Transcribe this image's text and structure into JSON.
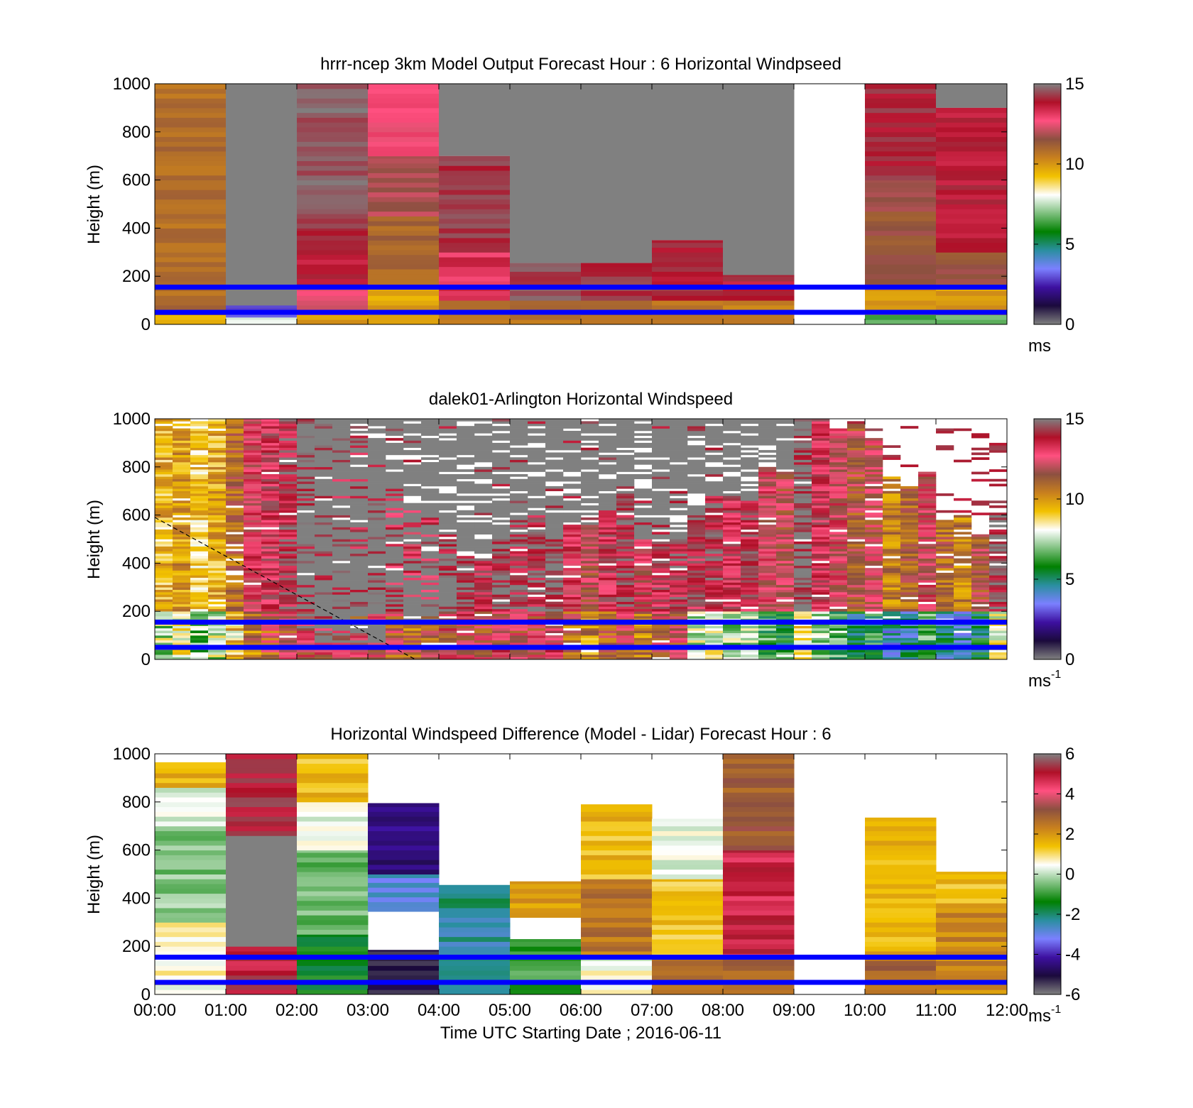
{
  "colors": {
    "background": "#ffffff",
    "axis": "#000000",
    "blue_reference_lines": "#0000ff",
    "gray_saturation": "#808080"
  },
  "colormap": {
    "name": "windspeed",
    "stops": [
      "#808080",
      "#1b0a3c",
      "#3d10a0",
      "#7b80ff",
      "#2a8fa0",
      "#008000",
      "#7fc07f",
      "#ffffff",
      "#f2c200",
      "#c8801e",
      "#8c5040",
      "#ff5080",
      "#b01028",
      "#808080"
    ]
  },
  "chart_data": [
    {
      "type": "heatmap",
      "title": "hrrr-ncep 3km Model Output   Forecast Hour : 6 Horizontal Windpseed",
      "xlabel": "",
      "ylabel": "Height (m)",
      "xlim": [
        "00:00",
        "12:00"
      ],
      "ylim": [
        0,
        1000
      ],
      "yticks": [
        "0",
        "200",
        "400",
        "600",
        "800",
        "1000"
      ],
      "x_tick_labels_shown": false,
      "colorbar": {
        "min": 0,
        "max": 15,
        "ticks": [
          "0",
          "5",
          "10",
          "15"
        ],
        "unit": "ms",
        "unit_superscript": ""
      },
      "reference_lines_height_m": [
        50,
        155
      ],
      "hours": [
        "00:00",
        "01:00",
        "02:00",
        "03:00",
        "04:00",
        "05:00",
        "06:00",
        "07:00",
        "08:00",
        "09:00",
        "10:00",
        "11:00"
      ],
      "columns": [
        {
          "hour": "00:00",
          "top_m": 1000,
          "segments": [
            {
              "from": 0,
              "to": 40,
              "value": 9.5
            },
            {
              "from": 40,
              "to": 1000,
              "value": 10.8
            }
          ]
        },
        {
          "hour": "01:00",
          "top_m": 1000,
          "segments": [
            {
              "from": 0,
              "to": 30,
              "value": 7.8
            },
            {
              "from": 30,
              "to": 80,
              "value": 3.0
            },
            {
              "from": 80,
              "to": 1000,
              "value": 15.5
            }
          ]
        },
        {
          "hour": "02:00",
          "top_m": 1000,
          "segments": [
            {
              "from": 0,
              "to": 40,
              "value": 10.0
            },
            {
              "from": 40,
              "to": 150,
              "value": 12.5
            },
            {
              "from": 150,
              "to": 400,
              "value": 13.8
            },
            {
              "from": 400,
              "to": 1000,
              "value": 14.6
            }
          ]
        },
        {
          "hour": "03:00",
          "top_m": 1000,
          "segments": [
            {
              "from": 0,
              "to": 150,
              "value": 9.8
            },
            {
              "from": 150,
              "to": 450,
              "value": 11.0
            },
            {
              "from": 450,
              "to": 700,
              "value": 11.8
            },
            {
              "from": 700,
              "to": 1000,
              "value": 12.8
            }
          ]
        },
        {
          "hour": "04:00",
          "top_m": 700,
          "segments": [
            {
              "from": 0,
              "to": 100,
              "value": 10.5
            },
            {
              "from": 100,
              "to": 300,
              "value": 13.2
            },
            {
              "from": 300,
              "to": 700,
              "value": 14.2
            }
          ]
        },
        {
          "hour": "05:00",
          "top_m": 255,
          "segments": [
            {
              "from": 0,
              "to": 100,
              "value": 10.8
            },
            {
              "from": 100,
              "to": 255,
              "value": 14.4
            }
          ]
        },
        {
          "hour": "06:00",
          "top_m": 255,
          "segments": [
            {
              "from": 0,
              "to": 100,
              "value": 10.8
            },
            {
              "from": 100,
              "to": 255,
              "value": 14.2
            }
          ]
        },
        {
          "hour": "07:00",
          "top_m": 350,
          "segments": [
            {
              "from": 0,
              "to": 100,
              "value": 10.8
            },
            {
              "from": 100,
              "to": 350,
              "value": 14.0
            }
          ]
        },
        {
          "hour": "08:00",
          "top_m": 205,
          "segments": [
            {
              "from": 0,
              "to": 100,
              "value": 10.5
            },
            {
              "from": 100,
              "to": 205,
              "value": 13.8
            }
          ]
        },
        {
          "hour": "09:00",
          "top_m": 0,
          "segments": []
        },
        {
          "hour": "10:00",
          "top_m": 1000,
          "segments": [
            {
              "from": 0,
              "to": 40,
              "value": 6.5
            },
            {
              "from": 40,
              "to": 150,
              "value": 9.8
            },
            {
              "from": 150,
              "to": 600,
              "value": 11.5
            },
            {
              "from": 600,
              "to": 1000,
              "value": 14.0
            }
          ]
        },
        {
          "hour": "11:00",
          "top_m": 900,
          "segments": [
            {
              "from": 0,
              "to": 40,
              "value": 6.5
            },
            {
              "from": 40,
              "to": 150,
              "value": 10.0
            },
            {
              "from": 150,
              "to": 300,
              "value": 11.5
            },
            {
              "from": 300,
              "to": 900,
              "value": 13.8
            }
          ]
        }
      ],
      "gray_above_top_hours": [
        "01:00",
        "04:00",
        "05:00",
        "06:00",
        "07:00",
        "08:00",
        "11:00"
      ]
    },
    {
      "type": "heatmap",
      "title": "dalek01-Arlington  Horizontal Windspeed",
      "xlabel": "",
      "ylabel": "Height (m)",
      "xlim": [
        "00:00",
        "12:00"
      ],
      "ylim": [
        0,
        1000
      ],
      "yticks": [
        "0",
        "200",
        "400",
        "600",
        "800",
        "1000"
      ],
      "x_tick_labels_shown": false,
      "colorbar": {
        "min": 0,
        "max": 15,
        "ticks": [
          "0",
          "5",
          "10",
          "15"
        ],
        "unit": "ms",
        "unit_superscript": "-1"
      },
      "reference_lines_height_m": [
        50,
        155
      ],
      "annotation_dashed_line": {
        "from": {
          "time": "00:00",
          "height_m": 590
        },
        "to": {
          "time": "03:40",
          "height_m": 0
        }
      },
      "subcolumns_per_hour": 4,
      "column_profiles": [
        {
          "top_m": 1000,
          "base": 9.5,
          "gray_above_m": null
        },
        {
          "top_m": 1000,
          "base": 10.0,
          "gray_above_m": null
        },
        {
          "top_m": 1000,
          "base": 9.0,
          "gray_above_m": null
        },
        {
          "top_m": 1000,
          "base": 9.6,
          "gray_above_m": null
        },
        {
          "top_m": 1000,
          "base": 11.0,
          "gray_above_m": null
        },
        {
          "top_m": 1000,
          "base": 12.8,
          "gray_above_m": null
        },
        {
          "top_m": 1000,
          "base": 13.5,
          "gray_above_m": null
        },
        {
          "top_m": 1000,
          "base": 14.0,
          "gray_above_m": null
        },
        {
          "top_m": 1000,
          "base": 14.5,
          "gray_above_m": 120
        },
        {
          "top_m": 980,
          "base": 14.5,
          "gray_above_m": 60
        },
        {
          "top_m": 960,
          "base": 14.0,
          "gray_above_m": 60
        },
        {
          "top_m": 940,
          "base": 14.0,
          "gray_above_m": 50
        },
        {
          "top_m": 860,
          "base": 14.2,
          "gray_above_m": 60
        },
        {
          "top_m": 700,
          "base": 13.5,
          "gray_above_m": 200
        },
        {
          "top_m": 640,
          "base": 13.0,
          "gray_above_m": 150
        },
        {
          "top_m": 600,
          "base": 13.5,
          "gray_above_m": 150
        },
        {
          "top_m": 500,
          "base": 14.2,
          "gray_above_m": 180
        },
        {
          "top_m": 430,
          "base": 14.5,
          "gray_above_m": null
        },
        {
          "top_m": 420,
          "base": 14.0,
          "gray_above_m": null
        },
        {
          "top_m": 500,
          "base": 14.5,
          "gray_above_m": null
        },
        {
          "top_m": 560,
          "base": 14.0,
          "gray_above_m": null
        },
        {
          "top_m": 600,
          "base": 14.2,
          "gray_above_m": null
        },
        {
          "top_m": 500,
          "base": 14.8,
          "gray_above_m": null
        },
        {
          "top_m": 560,
          "base": 13.0,
          "gray_above_m": null
        },
        {
          "top_m": 560,
          "base": 12.0,
          "gray_above_m": null
        },
        {
          "top_m": 620,
          "base": 13.5,
          "gray_above_m": null
        },
        {
          "top_m": 690,
          "base": 14.0,
          "gray_above_m": null
        },
        {
          "top_m": 500,
          "base": 12.5,
          "gray_above_m": null
        },
        {
          "top_m": 490,
          "base": 13.8,
          "gray_above_m": null
        },
        {
          "top_m": 500,
          "base": 14.0,
          "gray_above_m": null
        },
        {
          "top_m": 580,
          "base": 13.8,
          "gray_above_m": null
        },
        {
          "top_m": 700,
          "base": 14.2,
          "gray_above_m": null
        },
        {
          "top_m": 680,
          "base": 13.5,
          "gray_above_m": null
        },
        {
          "top_m": 660,
          "base": 13.8,
          "gray_above_m": null
        },
        {
          "top_m": 800,
          "base": 12.5,
          "gray_above_m": null
        },
        {
          "top_m": 780,
          "base": 12.0,
          "gray_above_m": null
        },
        {
          "top_m": 1000,
          "base": 14.8,
          "gray_above_m": null
        },
        {
          "top_m": 1000,
          "base": 13.5,
          "gray_above_m": null
        },
        {
          "top_m": 960,
          "base": 12.5,
          "gray_above_m": null
        },
        {
          "top_m": 980,
          "base": 11.5,
          "gray_above_m": null
        },
        {
          "top_m": 920,
          "base": 12.0,
          "gray_above_m": null
        },
        {
          "top_m": 760,
          "base": 10.5,
          "gray_above_m": null
        },
        {
          "top_m": 720,
          "base": 11.0,
          "gray_above_m": null
        },
        {
          "top_m": 780,
          "base": 12.5,
          "gray_above_m": null
        },
        {
          "top_m": 580,
          "base": 11.0,
          "gray_above_m": null
        },
        {
          "top_m": 600,
          "base": 10.5,
          "gray_above_m": null
        },
        {
          "top_m": 520,
          "base": 11.5,
          "gray_above_m": null
        },
        {
          "top_m": 610,
          "base": 14.5,
          "gray_above_m": null
        }
      ],
      "gray_region": {
        "from_time": "02:00",
        "to_time": "09:00",
        "description_values": "saturated"
      }
    },
    {
      "type": "heatmap",
      "title": "Horizontal Windspeed Difference (Model - Lidar) Forecast Hour : 6",
      "xlabel": "Time UTC  Starting Date ; 2016-06-11",
      "ylabel": "Height (m)",
      "xlim": [
        "00:00",
        "12:00"
      ],
      "ylim": [
        0,
        1000
      ],
      "yticks": [
        "0",
        "200",
        "400",
        "600",
        "800",
        "1000"
      ],
      "xticks": [
        "00:00",
        "01:00",
        "02:00",
        "03:00",
        "04:00",
        "05:00",
        "06:00",
        "07:00",
        "08:00",
        "09:00",
        "10:00",
        "11:00",
        "12:00"
      ],
      "colorbar": {
        "min": -6,
        "max": 6,
        "ticks": [
          "-6",
          "-4",
          "-2",
          "0",
          "2",
          "4",
          "6"
        ],
        "unit": "ms",
        "unit_superscript": "-1"
      },
      "reference_lines_height_m": [
        50,
        155
      ],
      "columns": [
        {
          "hour": "00:00",
          "top_m": 965,
          "segments": [
            {
              "from": 0,
              "to": 300,
              "value": 0.6
            },
            {
              "from": 300,
              "to": 700,
              "value": -0.4
            },
            {
              "from": 700,
              "to": 860,
              "value": 0.3
            },
            {
              "from": 860,
              "to": 965,
              "value": 1.6
            }
          ]
        },
        {
          "hour": "01:00",
          "top_m": 1000,
          "segments": [
            {
              "from": 0,
              "to": 200,
              "value": 5.0
            },
            {
              "from": 200,
              "to": 660,
              "value": 6.5
            },
            {
              "from": 660,
              "to": 1000,
              "value": 5.2
            }
          ]
        },
        {
          "hour": "02:00",
          "top_m": 1000,
          "segments": [
            {
              "from": 0,
              "to": 250,
              "value": -1.4
            },
            {
              "from": 250,
              "to": 600,
              "value": -0.6
            },
            {
              "from": 600,
              "to": 800,
              "value": 0.3
            },
            {
              "from": 800,
              "to": 1000,
              "value": 1.5
            }
          ]
        },
        {
          "hour": "03:00",
          "top_m": 795,
          "segments": [
            {
              "from": 0,
              "to": 185,
              "value": -5.2
            },
            {
              "from": 185,
              "to": 345,
              "value": null
            },
            {
              "from": 345,
              "to": 500,
              "value": -2.8
            },
            {
              "from": 500,
              "to": 795,
              "value": -4.5
            }
          ]
        },
        {
          "hour": "04:00",
          "top_m": 455,
          "segments": [
            {
              "from": 0,
              "to": 320,
              "value": -2.4
            },
            {
              "from": 320,
              "to": 455,
              "value": -2.0
            }
          ]
        },
        {
          "hour": "05:00",
          "top_m": 470,
          "segments": [
            {
              "from": 0,
              "to": 230,
              "value": -1.0
            },
            {
              "from": 230,
              "to": 320,
              "value": null
            },
            {
              "from": 320,
              "to": 470,
              "value": 1.8
            }
          ]
        },
        {
          "hour": "06:00",
          "top_m": 790,
          "segments": [
            {
              "from": 0,
              "to": 160,
              "value": 0.4
            },
            {
              "from": 160,
              "to": 480,
              "value": 2.5
            },
            {
              "from": 480,
              "to": 790,
              "value": 1.5
            }
          ]
        },
        {
          "hour": "07:00",
          "top_m": 730,
          "segments": [
            {
              "from": 0,
              "to": 150,
              "value": 2.6
            },
            {
              "from": 150,
              "to": 480,
              "value": 1.3
            },
            {
              "from": 480,
              "to": 730,
              "value": 0.2
            }
          ]
        },
        {
          "hour": "08:00",
          "top_m": 1000,
          "segments": [
            {
              "from": 0,
              "to": 150,
              "value": 2.8
            },
            {
              "from": 150,
              "to": 600,
              "value": 4.8
            },
            {
              "from": 600,
              "to": 1000,
              "value": 3.0
            }
          ]
        },
        {
          "hour": "09:00",
          "top_m": 0,
          "segments": []
        },
        {
          "hour": "10:00",
          "top_m": 735,
          "segments": [
            {
              "from": 0,
              "to": 160,
              "value": 2.8
            },
            {
              "from": 160,
              "to": 735,
              "value": 1.6
            }
          ]
        },
        {
          "hour": "11:00",
          "top_m": 510,
          "segments": [
            {
              "from": 0,
              "to": 380,
              "value": 2.2
            },
            {
              "from": 380,
              "to": 510,
              "value": 1.5
            }
          ]
        }
      ]
    }
  ]
}
